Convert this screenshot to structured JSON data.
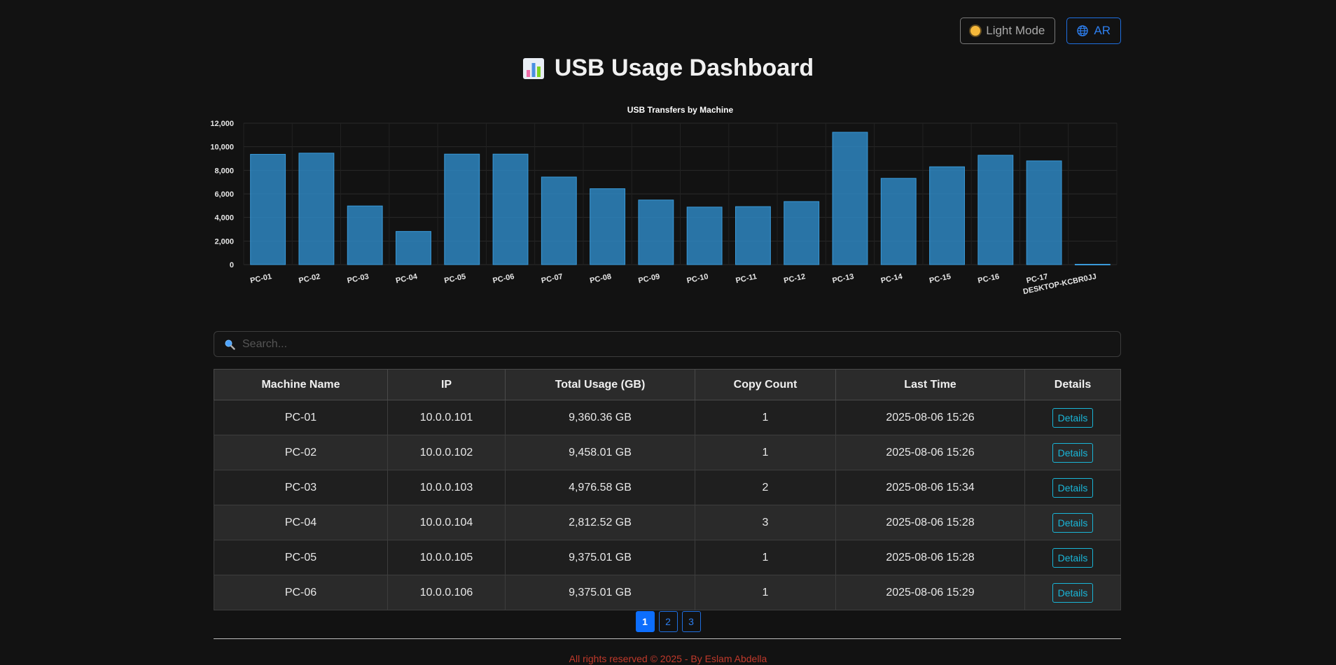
{
  "header": {
    "light_mode_label": "Light Mode",
    "lang_label": "AR",
    "title": "USB Usage Dashboard"
  },
  "search": {
    "placeholder": "Search..."
  },
  "chart_data": {
    "type": "bar",
    "title": "USB Transfers by Machine",
    "categories": [
      "PC-01",
      "PC-02",
      "PC-03",
      "PC-04",
      "PC-05",
      "PC-06",
      "PC-07",
      "PC-08",
      "PC-09",
      "PC-10",
      "PC-11",
      "PC-12",
      "PC-13",
      "PC-14",
      "PC-15",
      "PC-16",
      "PC-17",
      "DESKTOP-KCBR0JJ"
    ],
    "values": [
      9360,
      9458,
      4977,
      2813,
      9375,
      9375,
      7430,
      6440,
      5480,
      4880,
      4920,
      5350,
      11230,
      7320,
      8300,
      9280,
      8800,
      30
    ],
    "ylim": [
      0,
      12000
    ],
    "yticks": [
      "0",
      "2,000",
      "4,000",
      "6,000",
      "8,000",
      "10,000",
      "12,000"
    ],
    "grid": true,
    "bar_color": "#2e86c1"
  },
  "table": {
    "headers": [
      "Machine Name",
      "IP",
      "Total Usage (GB)",
      "Copy Count",
      "Last Time",
      "Details"
    ],
    "rows": [
      {
        "name": "PC-01",
        "ip": "10.0.0.101",
        "usage": "9,360.36 GB",
        "count": "1",
        "last": "2025-08-06 15:26",
        "details": "Details"
      },
      {
        "name": "PC-02",
        "ip": "10.0.0.102",
        "usage": "9,458.01 GB",
        "count": "1",
        "last": "2025-08-06 15:26",
        "details": "Details"
      },
      {
        "name": "PC-03",
        "ip": "10.0.0.103",
        "usage": "4,976.58 GB",
        "count": "2",
        "last": "2025-08-06 15:34",
        "details": "Details"
      },
      {
        "name": "PC-04",
        "ip": "10.0.0.104",
        "usage": "2,812.52 GB",
        "count": "3",
        "last": "2025-08-06 15:28",
        "details": "Details"
      },
      {
        "name": "PC-05",
        "ip": "10.0.0.105",
        "usage": "9,375.01 GB",
        "count": "1",
        "last": "2025-08-06 15:28",
        "details": "Details"
      },
      {
        "name": "PC-06",
        "ip": "10.0.0.106",
        "usage": "9,375.01 GB",
        "count": "1",
        "last": "2025-08-06 15:29",
        "details": "Details"
      }
    ]
  },
  "pagination": {
    "pages": [
      "1",
      "2",
      "3"
    ],
    "active": "1"
  },
  "footer": {
    "text": "All rights reserved © 2025 - By Eslam Abdella"
  },
  "colors": {
    "accent": "#0d6efd",
    "info": "#19b6d8",
    "footer": "#c0392b",
    "background": "#121212"
  }
}
